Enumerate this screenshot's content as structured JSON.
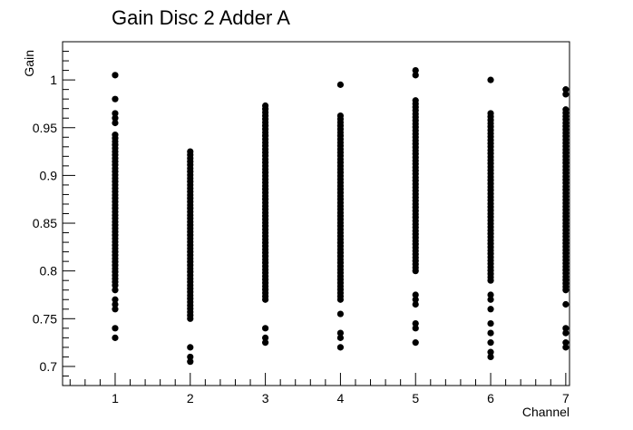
{
  "chart_data": {
    "type": "scatter",
    "title": "Gain Disc 2 Adder A",
    "xlabel": "Channel",
    "ylabel": "Gain",
    "xlim": [
      0.3,
      7.05
    ],
    "ylim": [
      0.68,
      1.04
    ],
    "xticks": [
      1,
      2,
      3,
      4,
      5,
      6,
      7
    ],
    "yticks": [
      0.7,
      0.75,
      0.8,
      0.85,
      0.9,
      0.95,
      1
    ],
    "ytick_labels": [
      "0.7",
      "0.75",
      "0.8",
      "0.85",
      "0.9",
      "0.95",
      "1"
    ],
    "grid": false,
    "marker_color": "#000000",
    "channels": [
      {
        "x": 1,
        "band": [
          0.785,
          0.945
        ],
        "points": [
          1.005,
          0.98,
          0.965,
          0.96,
          0.955,
          0.78,
          0.77,
          0.76,
          0.765,
          0.74,
          0.73
        ]
      },
      {
        "x": 2,
        "band": [
          0.75,
          0.925
        ],
        "points": [
          0.72,
          0.71,
          0.705
        ]
      },
      {
        "x": 3,
        "band": [
          0.77,
          0.975
        ],
        "points": [
          0.74,
          0.73,
          0.725
        ]
      },
      {
        "x": 4,
        "band": [
          0.77,
          0.965
        ],
        "points": [
          0.995,
          0.755,
          0.735,
          0.73,
          0.72
        ]
      },
      {
        "x": 5,
        "band": [
          0.8,
          0.98
        ],
        "points": [
          1.01,
          1.005,
          0.775,
          0.77,
          0.765,
          0.745,
          0.74,
          0.725
        ]
      },
      {
        "x": 6,
        "band": [
          0.79,
          0.965
        ],
        "points": [
          1.0,
          0.775,
          0.77,
          0.76,
          0.745,
          0.735,
          0.725,
          0.715,
          0.71
        ]
      },
      {
        "x": 7,
        "band": [
          0.78,
          0.97
        ],
        "points": [
          0.99,
          0.985,
          0.765,
          0.74,
          0.735,
          0.725,
          0.72
        ]
      }
    ]
  }
}
